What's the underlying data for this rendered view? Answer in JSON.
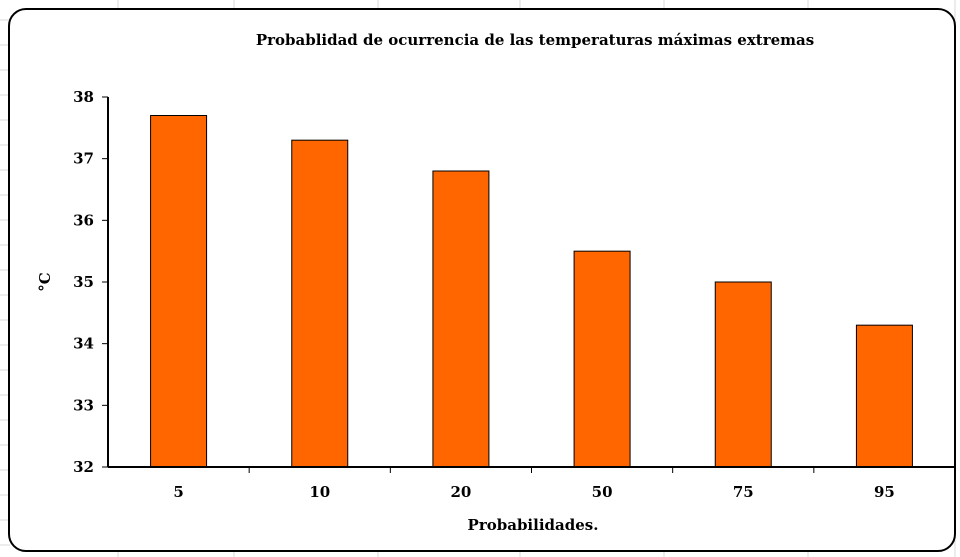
{
  "chart_data": {
    "type": "bar",
    "title": "Probablidad de ocurrencia de las temperaturas máximas extremas",
    "xlabel": "Probabilidades.",
    "ylabel": "°C",
    "categories": [
      "5",
      "10",
      "20",
      "50",
      "75",
      "95"
    ],
    "values": [
      37.7,
      37.3,
      36.8,
      35.5,
      35.0,
      34.3
    ],
    "ylim": [
      32,
      38
    ],
    "yticks": [
      "32",
      "33",
      "34",
      "35",
      "36",
      "37",
      "38"
    ],
    "grid": false,
    "legend": "none",
    "bar_color": "#FF6600",
    "bar_edge_color": "#000000"
  }
}
